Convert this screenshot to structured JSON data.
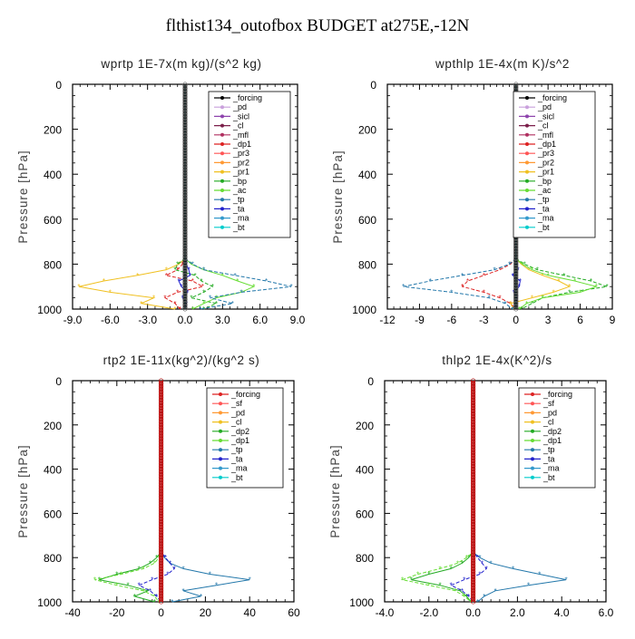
{
  "figure": {
    "title": "flthist134_outofbox  BUDGET at275E,-12N"
  },
  "chart_data": [
    {
      "type": "line",
      "title": "wprtp  1E-7x(m kg)/(s^2 kg)",
      "ylabel": "Pressure [hPa]",
      "xlim": [
        -9,
        9
      ],
      "ylim": [
        1000,
        0
      ],
      "y_inverted": true,
      "xticks": [
        "-9.0",
        "-6.0",
        "-3.0",
        "0.0",
        "3.0",
        "6.0",
        "9.0"
      ],
      "yticks": [
        "0",
        "200",
        "400",
        "600",
        "800",
        "1000"
      ],
      "grid": false,
      "legend_position": "top-right",
      "levels": [
        775,
        800,
        825,
        850,
        875,
        900,
        925,
        950,
        975,
        1000
      ],
      "series": [
        {
          "name": "_forcing",
          "color": "#000000",
          "values": [
            0,
            0,
            0,
            0,
            0,
            0,
            0,
            0,
            0,
            0
          ]
        },
        {
          "name": "_pd",
          "color": "#c9a0dc",
          "values": [
            0,
            0,
            0,
            0,
            0,
            0,
            0,
            0,
            0,
            0
          ]
        },
        {
          "name": "_sicl",
          "color": "#8e44ad",
          "values": [
            0,
            0,
            0,
            0,
            0,
            0,
            0,
            0,
            0,
            0
          ]
        },
        {
          "name": "_cl",
          "color": "#7b1f4a",
          "values": [
            0,
            0,
            0,
            0,
            0,
            0,
            0,
            0,
            0,
            0
          ]
        },
        {
          "name": "_mfl",
          "color": "#b03060",
          "values": [
            0,
            0,
            0,
            0,
            0,
            0,
            0,
            0,
            0,
            0
          ]
        },
        {
          "name": "_dp1",
          "color": "#dd2222",
          "values": [
            0,
            -0.2,
            -0.6,
            -1.5,
            0.6,
            1.4,
            -0.6,
            -1.6,
            -0.8,
            -0.4
          ]
        },
        {
          "name": "_pr3",
          "color": "#ff5555",
          "values": [
            0,
            0,
            0,
            0,
            0,
            0,
            0,
            0,
            0,
            0
          ]
        },
        {
          "name": "_pr2",
          "color": "#ff9933",
          "values": [
            0,
            0,
            0,
            0,
            0,
            0,
            0,
            0,
            0,
            0
          ]
        },
        {
          "name": "_pr1",
          "color": "#f0c020",
          "values": [
            0,
            -0.5,
            -1.5,
            -3.8,
            -6.5,
            -8.5,
            -6,
            -2.5,
            -3.5,
            -0.8
          ]
        },
        {
          "name": "_bp",
          "color": "#22aa22",
          "values": [
            0,
            -0.6,
            -0.8,
            0.8,
            1.3,
            2.2,
            1.5,
            0.5,
            2.5,
            1.5
          ]
        },
        {
          "name": "_ac",
          "color": "#66dd33",
          "values": [
            0,
            0.5,
            1.5,
            3,
            4.2,
            5.5,
            4.5,
            2.5,
            1.5,
            0.6
          ]
        },
        {
          "name": "_tp",
          "color": "#2277aa",
          "values": [
            0,
            0.6,
            1.5,
            4,
            6.5,
            8.5,
            4.5,
            2,
            3.8,
            1.2
          ]
        },
        {
          "name": "_ta",
          "color": "#2222cc",
          "values": [
            0,
            0.1,
            0.3,
            0.4,
            -0.5,
            -0.3,
            0.2,
            -0.2,
            0.1,
            0
          ]
        },
        {
          "name": "_ma",
          "color": "#3399cc",
          "values": [
            0,
            0,
            0,
            0,
            0,
            0,
            0,
            0,
            0,
            0
          ]
        },
        {
          "name": "_bt",
          "color": "#00cccc",
          "values": [
            0,
            0,
            0,
            0,
            0,
            0,
            0,
            0,
            0,
            0
          ]
        }
      ]
    },
    {
      "type": "line",
      "title": "wpthlp  1E-4x(m K)/s^2",
      "ylabel": "Pressure [hPa]",
      "xlim": [
        -12,
        9
      ],
      "ylim": [
        1000,
        0
      ],
      "y_inverted": true,
      "xticks": [
        "-12",
        "-9",
        "-6",
        "-3",
        "0",
        "3",
        "6",
        "9"
      ],
      "yticks": [
        "0",
        "200",
        "400",
        "600",
        "800",
        "1000"
      ],
      "grid": false,
      "legend_position": "top-right",
      "levels": [
        775,
        800,
        825,
        850,
        875,
        900,
        925,
        950,
        975,
        1000
      ],
      "series": [
        {
          "name": "_forcing",
          "color": "#000000",
          "values": [
            0,
            0,
            0,
            0,
            0,
            0,
            0,
            0,
            0,
            0
          ]
        },
        {
          "name": "_pd",
          "color": "#c9a0dc",
          "values": [
            0,
            0,
            0,
            0,
            0,
            0,
            0,
            0,
            0,
            0
          ]
        },
        {
          "name": "_sicl",
          "color": "#8e44ad",
          "values": [
            0,
            0,
            0,
            0,
            0,
            0,
            0,
            0,
            0,
            0
          ]
        },
        {
          "name": "_cl",
          "color": "#7b1f4a",
          "values": [
            0,
            0,
            0,
            0,
            0,
            0,
            0,
            0,
            0,
            0
          ]
        },
        {
          "name": "_mfl",
          "color": "#b03060",
          "values": [
            0,
            0,
            0,
            0,
            0,
            0,
            0,
            0,
            0,
            0
          ]
        },
        {
          "name": "_dp1",
          "color": "#dd2222",
          "values": [
            0,
            -0.5,
            -1.5,
            -3,
            -4.5,
            -5,
            -3,
            -1.5,
            -0.5,
            0
          ]
        },
        {
          "name": "_pr3",
          "color": "#ff5555",
          "values": [
            0,
            0,
            0,
            0,
            0,
            0,
            0,
            0,
            0,
            0
          ]
        },
        {
          "name": "_pr2",
          "color": "#ff9933",
          "values": [
            0,
            0,
            0,
            0,
            0,
            0,
            0,
            0,
            0,
            0
          ]
        },
        {
          "name": "_pr1",
          "color": "#f0c020",
          "values": [
            0,
            0.5,
            1.2,
            2.5,
            4,
            5,
            3.5,
            1.5,
            -0.5,
            -0.2
          ]
        },
        {
          "name": "_bp",
          "color": "#22aa22",
          "values": [
            0,
            0.8,
            2,
            4.5,
            7,
            8.5,
            5,
            2.5,
            1.5,
            0.5
          ]
        },
        {
          "name": "_ac",
          "color": "#66dd33",
          "values": [
            0,
            0.6,
            1.5,
            3,
            5.5,
            7.5,
            6,
            2.5,
            1,
            0.3
          ]
        },
        {
          "name": "_tp",
          "color": "#2277aa",
          "values": [
            0,
            -0.6,
            -2,
            -5,
            -8,
            -10.5,
            -6,
            -2.5,
            -1,
            -0.3
          ]
        },
        {
          "name": "_ta",
          "color": "#2222cc",
          "values": [
            0,
            0.1,
            0.2,
            -0.3,
            0.4,
            0.3,
            -0.2,
            0.1,
            0,
            0
          ]
        },
        {
          "name": "_ma",
          "color": "#3399cc",
          "values": [
            0,
            0,
            0,
            0,
            0,
            0,
            0,
            0,
            0,
            0
          ]
        },
        {
          "name": "_bt",
          "color": "#00cccc",
          "values": [
            0,
            0,
            0,
            0,
            0,
            0,
            0,
            0,
            0,
            0
          ]
        }
      ]
    },
    {
      "type": "line",
      "title": "rtp2  1E-11x(kg^2)/(kg^2 s)",
      "ylabel": "Pressure [hPa]",
      "xlim": [
        -40,
        60
      ],
      "ylim": [
        1000,
        0
      ],
      "y_inverted": true,
      "xticks": [
        "-40",
        "-20",
        "0",
        "20",
        "40",
        "60"
      ],
      "yticks": [
        "0",
        "200",
        "400",
        "600",
        "800",
        "1000"
      ],
      "grid": false,
      "legend_position": "top-right",
      "levels": [
        775,
        800,
        825,
        850,
        875,
        900,
        925,
        950,
        975,
        1000
      ],
      "series": [
        {
          "name": "_forcing",
          "color": "#dd2222",
          "values": [
            0,
            0,
            0,
            0,
            0,
            0,
            0,
            0,
            0,
            0
          ]
        },
        {
          "name": "_sf",
          "color": "#ff5555",
          "values": [
            0,
            0,
            0,
            0,
            0,
            0,
            0,
            0,
            0,
            0
          ]
        },
        {
          "name": "_pd",
          "color": "#ff9933",
          "values": [
            0,
            0,
            0,
            0,
            0,
            0,
            0,
            0,
            0,
            0
          ]
        },
        {
          "name": "_cl",
          "color": "#f0c020",
          "values": [
            0,
            0,
            0,
            0,
            0,
            0,
            0,
            0,
            0,
            0
          ]
        },
        {
          "name": "_dp2",
          "color": "#22aa22",
          "values": [
            0,
            -2,
            -5,
            -10,
            -20,
            -28,
            -15,
            -6,
            -12,
            -3
          ]
        },
        {
          "name": "_dp1",
          "color": "#66dd33",
          "values": [
            0,
            -1,
            -3,
            -8,
            -18,
            -30,
            -20,
            -8,
            -3,
            -1
          ]
        },
        {
          "name": "_tp",
          "color": "#2277aa",
          "values": [
            0,
            1.5,
            4,
            10,
            22,
            40,
            25,
            10,
            18,
            5
          ]
        },
        {
          "name": "_ta",
          "color": "#2222cc",
          "values": [
            0,
            2,
            4,
            6,
            3,
            -4,
            -10,
            -5,
            -2,
            0
          ]
        },
        {
          "name": "_ma",
          "color": "#3399cc",
          "values": [
            0,
            0,
            0,
            0,
            0,
            0,
            0,
            0,
            0,
            0
          ]
        },
        {
          "name": "_bt",
          "color": "#00cccc",
          "values": [
            0,
            0,
            0,
            0,
            0,
            0,
            0,
            0,
            0,
            0
          ]
        }
      ]
    },
    {
      "type": "line",
      "title": "thlp2  1E-4x(K^2)/s",
      "ylabel": "Pressure [hPa]",
      "xlim": [
        -4,
        6
      ],
      "ylim": [
        1000,
        0
      ],
      "y_inverted": true,
      "xticks": [
        "-4.0",
        "-2.0",
        "0.0",
        "2.0",
        "4.0",
        "6.0"
      ],
      "yticks": [
        "0",
        "200",
        "400",
        "600",
        "800",
        "1000"
      ],
      "grid": false,
      "legend_position": "top-right",
      "levels": [
        775,
        800,
        825,
        850,
        875,
        900,
        925,
        950,
        975,
        1000
      ],
      "series": [
        {
          "name": "_forcing",
          "color": "#dd2222",
          "values": [
            0,
            0,
            0,
            0,
            0,
            0,
            0,
            0,
            0,
            0
          ]
        },
        {
          "name": "_sf",
          "color": "#ff5555",
          "values": [
            0,
            0,
            0,
            0,
            0,
            0,
            0,
            0,
            0,
            0
          ]
        },
        {
          "name": "_pd",
          "color": "#ff9933",
          "values": [
            0,
            0,
            0,
            0,
            0,
            0,
            0,
            0,
            0,
            0
          ]
        },
        {
          "name": "_cl",
          "color": "#f0c020",
          "values": [
            0,
            0,
            0,
            0,
            0,
            0,
            0,
            0,
            0,
            0
          ]
        },
        {
          "name": "_dp2",
          "color": "#22aa22",
          "values": [
            0,
            -0.2,
            -0.5,
            -1,
            -2,
            -2.8,
            -1.5,
            -0.6,
            -0.3,
            -0.1
          ]
        },
        {
          "name": "_dp1",
          "color": "#66dd33",
          "values": [
            0,
            -0.3,
            -0.7,
            -1.5,
            -2.5,
            -3.2,
            -2,
            -0.8,
            -0.4,
            -0.1
          ]
        },
        {
          "name": "_tp",
          "color": "#2277aa",
          "values": [
            0,
            0.3,
            0.8,
            1.8,
            3,
            4.2,
            2.5,
            1,
            0.5,
            0.2
          ]
        },
        {
          "name": "_ta",
          "color": "#2222cc",
          "values": [
            0,
            0.2,
            0.4,
            0.6,
            0.3,
            -0.4,
            -1,
            -0.5,
            -0.2,
            0
          ]
        },
        {
          "name": "_ma",
          "color": "#3399cc",
          "values": [
            0,
            0,
            0,
            0,
            0,
            0,
            0,
            0,
            0,
            0
          ]
        },
        {
          "name": "_bt",
          "color": "#00cccc",
          "values": [
            0,
            0,
            0,
            0,
            0,
            0,
            0,
            0,
            0,
            0
          ]
        }
      ]
    }
  ]
}
